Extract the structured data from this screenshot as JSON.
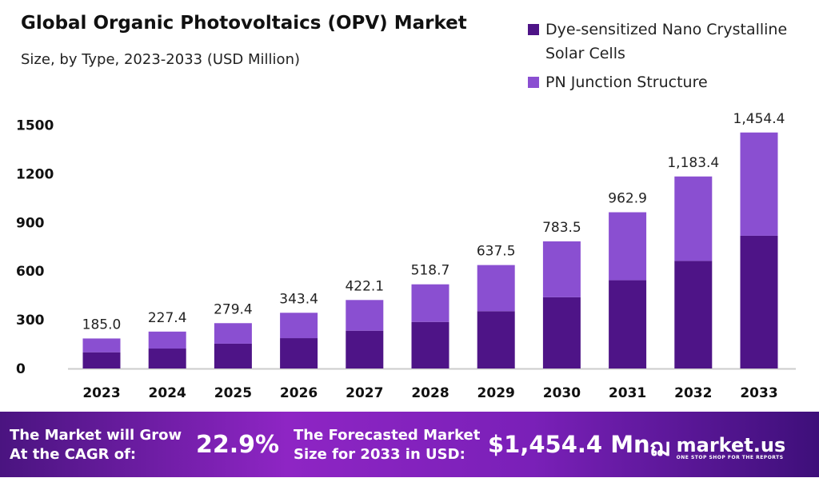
{
  "chart_data": {
    "type": "bar",
    "stacked": true,
    "title": "Global Organic Photovoltaics (OPV) Market",
    "subtitle": "Size, by Type, 2023-2033 (USD Million)",
    "categories": [
      "2023",
      "2024",
      "2025",
      "2026",
      "2027",
      "2028",
      "2029",
      "2030",
      "2031",
      "2032",
      "2033"
    ],
    "series": [
      {
        "name": "Dye-sensitized Nano Crystalline Solar Cells",
        "color": "#4e1487",
        "values": [
          100,
          123,
          153,
          187,
          233,
          287,
          353,
          439,
          544,
          663,
          818
        ]
      },
      {
        "name": "PN Junction Structure",
        "color": "#8a4fd1",
        "values": [
          85,
          104.4,
          126.4,
          156.4,
          189.1,
          231.7,
          284.5,
          344.5,
          418.9,
          520.4,
          636.4
        ]
      }
    ],
    "totals": [
      "185.0",
      "227.4",
      "279.4",
      "343.4",
      "422.1",
      "518.7",
      "637.5",
      "783.5",
      "962.9",
      "1,183.4",
      "1,454.4"
    ],
    "yticks": [
      "0",
      "300",
      "600",
      "900",
      "1200",
      "1500"
    ],
    "ylim": [
      0,
      1600
    ],
    "grid": false,
    "legend": "top-right"
  },
  "footer": {
    "cagr_label_1": "The Market will Grow",
    "cagr_label_2": "At the CAGR of:",
    "cagr_value": "22.9%",
    "forecast_label_1": "The Forecasted Market",
    "forecast_label_2": "Size for 2033 in USD:",
    "forecast_value": "$1,454.4 Mn",
    "logo_name": "market.us",
    "logo_tagline": "ONE STOP SHOP FOR THE REPORTS"
  }
}
